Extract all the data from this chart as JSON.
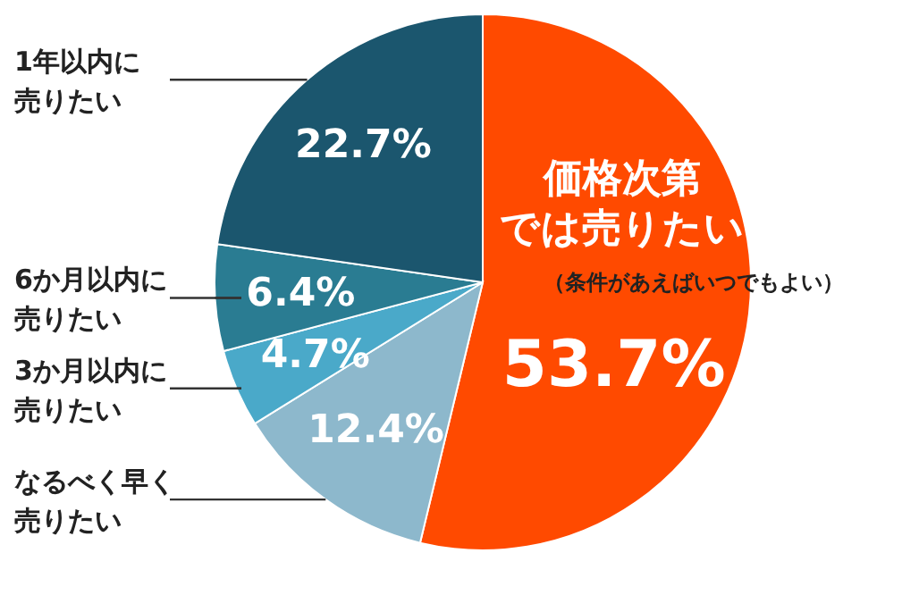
{
  "chart_data": {
    "type": "pie",
    "categories": [
      "価格次第では売りたい（条件があえばいつでもよい）",
      "なるべく早く売りたい",
      "3か月以内に売りたい",
      "6か月以内に売りたい",
      "1年以内に売りたい"
    ],
    "values": [
      53.7,
      12.4,
      4.7,
      6.4,
      22.7
    ],
    "colors": [
      "#ff4a00",
      "#8db8cc",
      "#4aa9c9",
      "#2a7c92",
      "#1b566e"
    ],
    "value_labels": [
      "53.7%",
      "12.4%",
      "4.7%",
      "6.4%",
      "22.7%"
    ]
  }
}
